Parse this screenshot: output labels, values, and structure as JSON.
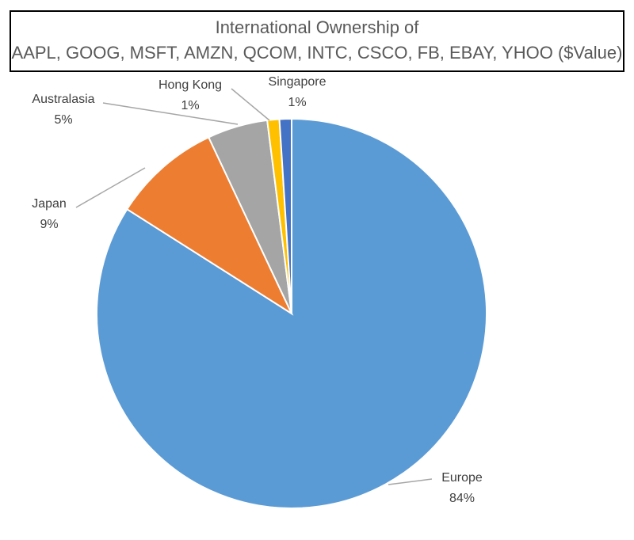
{
  "chart_data": {
    "type": "pie",
    "title": [
      "International Ownership of",
      "AAPL, GOOG, MSFT, AMZN, QCOM, INTC, CSCO, FB, EBAY, YHOO ($Value)"
    ],
    "categories": [
      "Europe",
      "Japan",
      "Australasia",
      "Hong Kong",
      "Singapore"
    ],
    "values": [
      84,
      9,
      5,
      1,
      1
    ],
    "value_labels": [
      "84%",
      "9%",
      "5%",
      "1%",
      "1%"
    ],
    "colors": [
      "#5b9bd5",
      "#ed7d31",
      "#a5a5a5",
      "#ffc000",
      "#4472c4"
    ]
  }
}
